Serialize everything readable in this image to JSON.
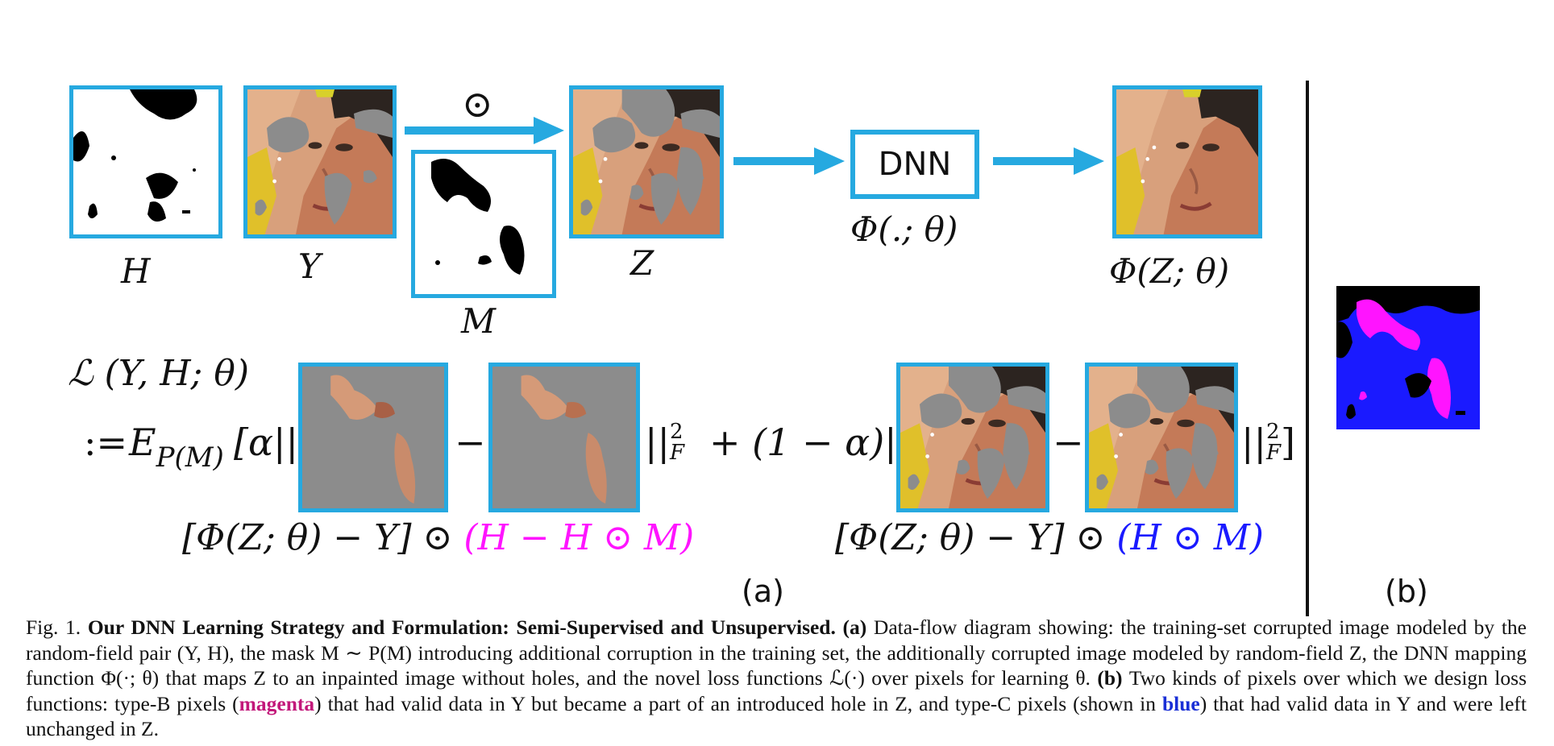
{
  "colors": {
    "frame": "#26a9e0",
    "arrow": "#26a9e0",
    "magenta": "#ff14ff",
    "blue": "#1a1aff",
    "caption_magenta": "#c2187a",
    "caption_blue": "#1a2fd6",
    "hole_gray": "#8c8c8c",
    "skin": "#c98b6b"
  },
  "icons": {
    "hole_mask_H": "hole-mask-image",
    "hole_mask_M": "additional-mask-image",
    "face_Y": "face-photo-with-holes",
    "face_Z": "face-photo-with-extra-holes",
    "face_out": "inpainted-face-photo",
    "pixel_map": "pixel-type-map"
  },
  "labels": {
    "H": "H",
    "Y": "Y",
    "M": "M",
    "Z": "Z",
    "odot": "⊙",
    "dnn": "DNN",
    "phi_fn": "Φ(.; θ)",
    "phi_out": "Φ(Z; θ)",
    "loss_lhs": "ℒ (Y, H; θ)",
    "loss_def": ":=",
    "E": "E",
    "E_sub": "P(M)",
    "open_alpha": "[α||",
    "minus1": "−",
    "norm_mid": "||",
    "sq": "2",
    "F": "F",
    "plus_term": "+ (1 − α)||",
    "minus2": "−",
    "norm_end": "||",
    "close_bracket": "]",
    "term1_base": "[Φ(Z; θ) − Y] ⊙ ",
    "term1_mask": "(H − H ⊙ M)",
    "term2_base": "[Φ(Z; θ) − Y] ⊙ ",
    "term2_mask": "(H ⊙ M)",
    "panel_a": "(a)",
    "panel_b": "(b)"
  },
  "caption": {
    "fig": "Fig. 1.",
    "title": "Our DNN Learning Strategy and Formulation: Semi-Supervised and Unsupervised.",
    "a_label": "(a)",
    "a_text": "Data-flow diagram showing: the training-set corrupted image modeled by the random-field pair (Y, H), the mask M ∼ P(M) introducing additional corruption in the training set, the additionally corrupted image modeled by random-field Z, the DNN mapping function Φ(·; θ) that maps Z to an inpainted image without holes, and the novel loss functions ℒ(·) over pixels for learning θ.",
    "b_label": "(b)",
    "b_text1": "Two kinds of pixels over which we design loss functions: type-B pixels (",
    "magenta": "magenta",
    "b_text2": ") that had valid data in Y but became a part of an introduced hole in Z, and type-C pixels (shown in ",
    "blue": "blue",
    "b_text3": ") that had valid data in Y and were left unchanged in Z."
  }
}
